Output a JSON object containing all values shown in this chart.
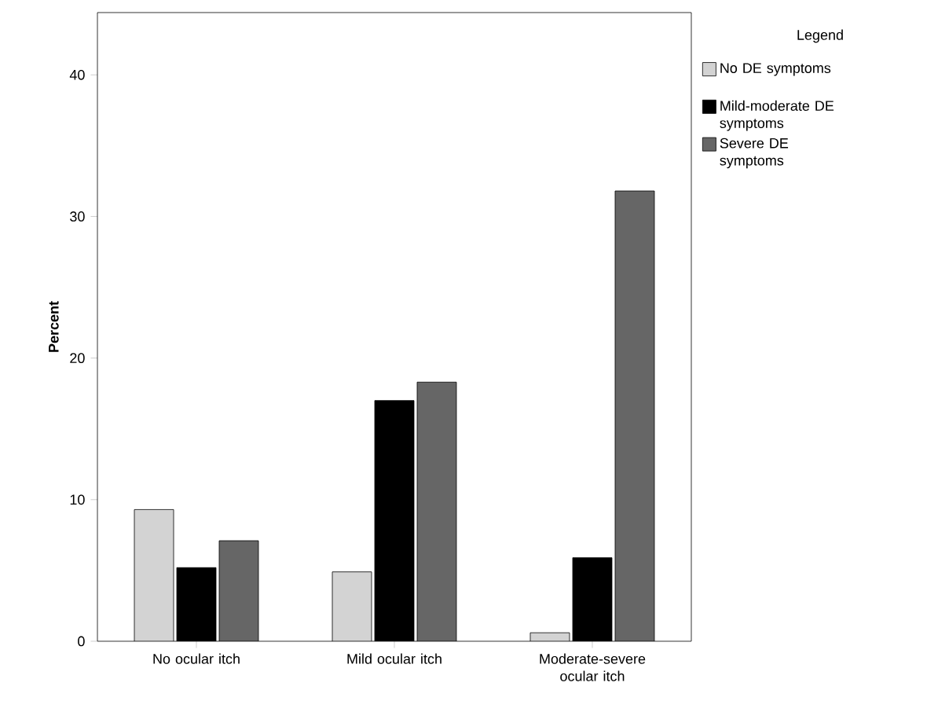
{
  "chart_data": {
    "type": "bar",
    "ylabel": "Percent",
    "legend_title": "Legend",
    "categories": [
      "No ocular itch",
      "Mild ocular itch",
      "Moderate-severe ocular itch"
    ],
    "series": [
      {
        "name": "No DE symptoms",
        "color": "#d3d3d3",
        "values": [
          9.3,
          4.9,
          0.6
        ]
      },
      {
        "name": "Mild-moderate DE symptoms",
        "color": "#000000",
        "values": [
          5.2,
          17.0,
          5.9
        ]
      },
      {
        "name": "Severe DE symptoms",
        "color": "#666666",
        "values": [
          7.1,
          18.3,
          31.8
        ]
      }
    ],
    "ylim": [
      0,
      44.4
    ],
    "yticks": [
      0,
      10,
      20,
      30,
      40
    ],
    "grid": false,
    "legend": "top right"
  }
}
